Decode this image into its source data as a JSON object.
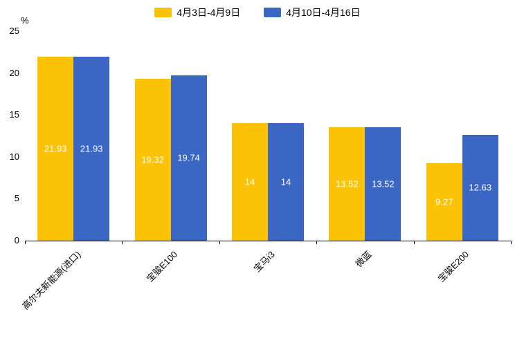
{
  "chart_data": {
    "type": "bar",
    "title": "",
    "unit": "%",
    "categories": [
      "高尔夫新能源(进口)",
      "宝骏E100",
      "宝马i3",
      "微蓝",
      "宝骏E200"
    ],
    "series": [
      {
        "name": "4月3日-4月9日",
        "color": "#FCC306",
        "values": [
          21.93,
          19.32,
          14,
          13.52,
          9.27
        ]
      },
      {
        "name": "4月10日-4月16日",
        "color": "#3A66C4",
        "values": [
          21.93,
          19.74,
          14,
          13.52,
          12.63
        ]
      }
    ],
    "ylim": [
      0,
      25
    ],
    "yticks": [
      0,
      5,
      10,
      15,
      20,
      25
    ],
    "legend_position": "top",
    "grid": false,
    "value_labels_shown": true
  }
}
